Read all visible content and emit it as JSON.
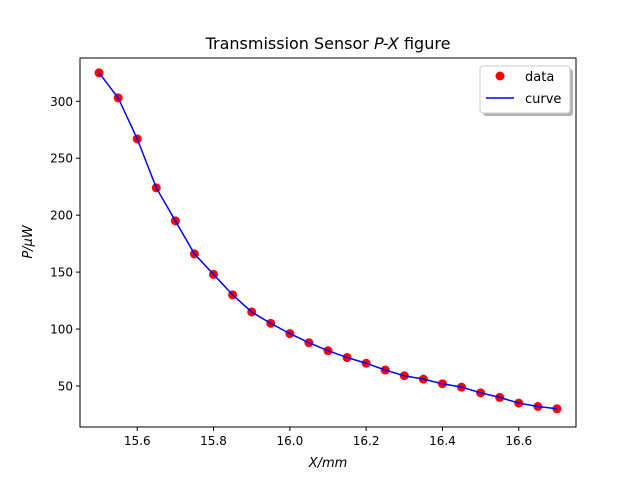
{
  "chart_data": {
    "type": "line",
    "title_prefix": "Transmission Sensor ",
    "title_italic": "P-X",
    "title_suffix": " figure",
    "xlabel": "X/mm",
    "ylabel": "P/μW",
    "xlim": [
      15.45,
      16.75
    ],
    "ylim": [
      14,
      338
    ],
    "xticks": [
      15.6,
      15.8,
      16.0,
      16.2,
      16.4,
      16.6
    ],
    "xtick_labels": [
      "15.6",
      "15.8",
      "16.0",
      "16.2",
      "16.4",
      "16.6"
    ],
    "yticks": [
      50,
      100,
      150,
      200,
      250,
      300
    ],
    "ytick_labels": [
      "50",
      "100",
      "150",
      "200",
      "250",
      "300"
    ],
    "grid": false,
    "legend_position": "top-right",
    "series": [
      {
        "name": "data",
        "style": "markers",
        "color": "#ff0000",
        "x": [
          15.5,
          15.55,
          15.6,
          15.65,
          15.7,
          15.75,
          15.8,
          15.85,
          15.9,
          15.95,
          16.0,
          16.05,
          16.1,
          16.15,
          16.2,
          16.25,
          16.3,
          16.35,
          16.4,
          16.45,
          16.5,
          16.55,
          16.6,
          16.65,
          16.7
        ],
        "y": [
          325,
          303,
          267,
          224,
          195,
          166,
          148,
          130,
          115,
          105,
          96,
          88,
          81,
          75,
          70,
          64,
          59,
          56,
          52,
          49,
          44,
          40,
          35,
          32,
          30
        ]
      },
      {
        "name": "curve",
        "style": "line",
        "color": "#0000ff",
        "x": [
          15.5,
          15.55,
          15.6,
          15.65,
          15.7,
          15.75,
          15.8,
          15.85,
          15.9,
          15.95,
          16.0,
          16.05,
          16.1,
          16.15,
          16.2,
          16.25,
          16.3,
          16.35,
          16.4,
          16.45,
          16.5,
          16.55,
          16.6,
          16.65,
          16.7
        ],
        "y": [
          325,
          303,
          267,
          224,
          195,
          166,
          148,
          130,
          115,
          105,
          96,
          88,
          81,
          75,
          70,
          64,
          59,
          56,
          52,
          49,
          44,
          40,
          35,
          32,
          30
        ]
      }
    ]
  }
}
